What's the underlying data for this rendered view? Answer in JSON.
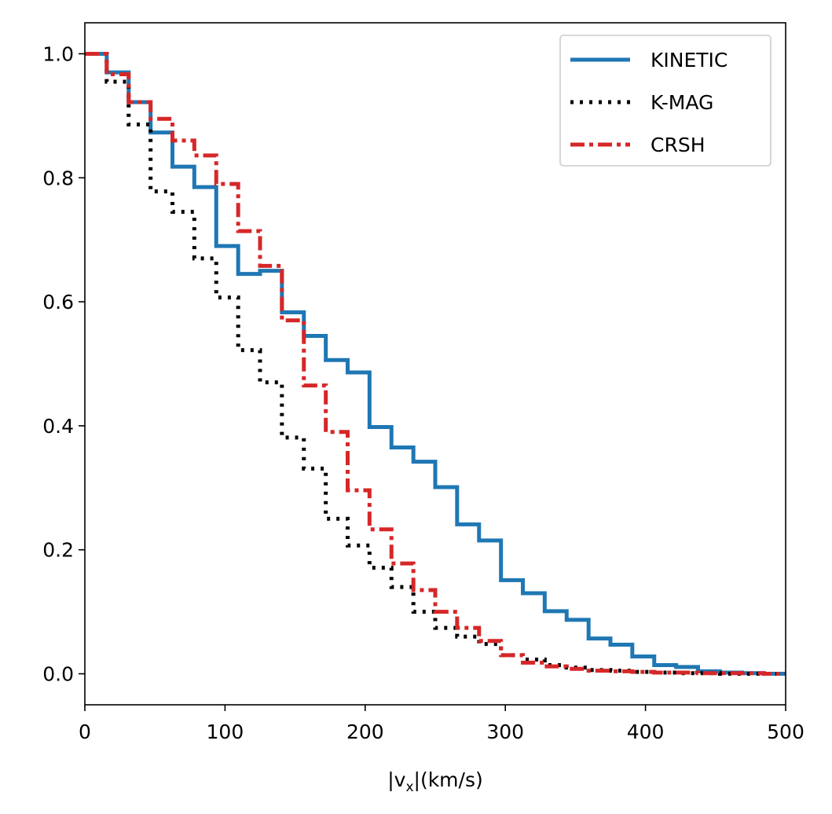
{
  "chart_data": {
    "type": "line",
    "step": "post",
    "title": "",
    "xlabel_main": "|v",
    "xlabel_sub": "x",
    "xlabel_tail": "|(km/s)",
    "ylabel": "",
    "xlim": [
      0,
      500
    ],
    "ylim": [
      -0.05,
      1.05
    ],
    "xticks": [
      0,
      100,
      200,
      300,
      400,
      500
    ],
    "xtick_labels": [
      "0",
      "100",
      "200",
      "300",
      "400",
      "500"
    ],
    "yticks": [
      0.0,
      0.2,
      0.4,
      0.6,
      0.8,
      1.0
    ],
    "ytick_labels": [
      "0.0",
      "0.2",
      "0.4",
      "0.6",
      "0.8",
      "1.0"
    ],
    "legend_position": "top-right",
    "grid": false,
    "series": [
      {
        "name": "KINETIC",
        "color": "#1f77b4",
        "style": "solid",
        "x": [
          0,
          15.6,
          31.25,
          46.9,
          62.5,
          78.1,
          93.75,
          109.4,
          125,
          140.6,
          156.25,
          171.9,
          187.5,
          203.1,
          218.75,
          234.4,
          250,
          265.6,
          281.25,
          296.9,
          312.5,
          328.1,
          343.75,
          359.4,
          375,
          390.6,
          406.25,
          421.9,
          437.5,
          453.1,
          468.75,
          484.4,
          500
        ],
        "y": [
          1.0,
          0.97,
          0.922,
          0.873,
          0.818,
          0.785,
          0.69,
          0.645,
          0.65,
          0.583,
          0.545,
          0.506,
          0.486,
          0.398,
          0.365,
          0.342,
          0.301,
          0.241,
          0.215,
          0.151,
          0.13,
          0.101,
          0.087,
          0.057,
          0.047,
          0.028,
          0.014,
          0.011,
          0.004,
          0.002,
          0.001,
          0.0,
          0.0
        ]
      },
      {
        "name": "K-MAG",
        "color": "#000000",
        "style": "dotted",
        "x": [
          0,
          15.6,
          31.25,
          46.9,
          62.5,
          78.1,
          93.75,
          109.4,
          125,
          140.6,
          156.25,
          171.9,
          187.5,
          203.1,
          218.75,
          234.4,
          250,
          265.6,
          281.25,
          296.9,
          312.5,
          328.1,
          343.75,
          359.4,
          375,
          390.6,
          406.25,
          421.9,
          437.5,
          453.1,
          468.75,
          484.4,
          500
        ],
        "y": [
          1.0,
          0.955,
          0.886,
          0.778,
          0.745,
          0.67,
          0.607,
          0.522,
          0.47,
          0.381,
          0.331,
          0.25,
          0.207,
          0.171,
          0.14,
          0.1,
          0.074,
          0.06,
          0.048,
          0.03,
          0.023,
          0.014,
          0.01,
          0.006,
          0.005,
          0.003,
          0.002,
          0.001,
          0.001,
          0.0,
          0.0,
          0.0,
          0.0
        ]
      },
      {
        "name": "CRSH",
        "color": "#d62728",
        "style": "dashdot",
        "x": [
          0,
          15.6,
          31.25,
          46.9,
          62.5,
          78.1,
          93.75,
          109.4,
          125,
          140.6,
          156.25,
          171.9,
          187.5,
          203.1,
          218.75,
          234.4,
          250,
          265.6,
          281.25,
          296.9,
          312.5,
          328.1,
          343.75,
          359.4,
          375,
          390.6,
          406.25,
          421.9,
          437.5,
          453.1,
          468.75,
          484.4,
          500
        ],
        "y": [
          1.0,
          0.967,
          0.922,
          0.895,
          0.86,
          0.836,
          0.79,
          0.714,
          0.658,
          0.57,
          0.465,
          0.39,
          0.296,
          0.233,
          0.178,
          0.135,
          0.1,
          0.074,
          0.053,
          0.03,
          0.018,
          0.012,
          0.008,
          0.005,
          0.004,
          0.003,
          0.002,
          0.002,
          0.001,
          0.001,
          0.001,
          0.0,
          0.0
        ]
      }
    ]
  }
}
